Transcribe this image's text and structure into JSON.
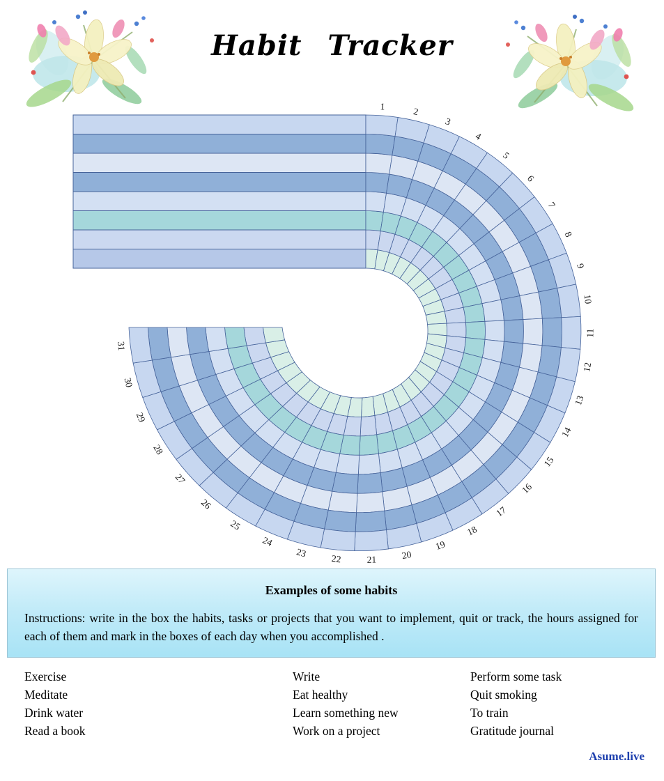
{
  "page": {
    "title": "Habit Tracker",
    "brand": "Asume.live"
  },
  "tracker": {
    "days": 31,
    "rings": 8,
    "day_labels": [
      "1",
      "2",
      "3",
      "4",
      "5",
      "6",
      "7",
      "8",
      "9",
      "10",
      "11",
      "12",
      "13",
      "14",
      "15",
      "16",
      "17",
      "18",
      "19",
      "20",
      "21",
      "22",
      "23",
      "24",
      "25",
      "26",
      "27",
      "28",
      "29",
      "30",
      "31"
    ],
    "row_colors_top_to_bottom": [
      "#c7d7f0",
      "#90b0d8",
      "#dde6f4",
      "#90b0d8",
      "#d3e0f3",
      "#a5d7db",
      "#cbd8f0",
      "#b6c8e8"
    ],
    "ring_colors_outer_to_inner": [
      "#c7d7f0",
      "#90b0d8",
      "#dde6f4",
      "#90b0d8",
      "#d3e0f3",
      "#a5d7db",
      "#cbd8f0",
      "#d9efe7"
    ],
    "grid_color": "#46639a"
  },
  "info_box": {
    "heading": "Examples of some habits",
    "instructions": "Instructions: write in the box the habits, tasks or projects that you want to implement, quit or track, the hours assigned for each of them and mark in the boxes of each day  when you accomplished ."
  },
  "examples": {
    "columns": [
      {
        "items": [
          "Exercise",
          "Meditate",
          "Drink water",
          "Read a book"
        ]
      },
      {
        "items": [
          "Write",
          "Eat healthy",
          "Learn something new",
          "Work on a project"
        ]
      },
      {
        "items": [
          "Perform some task",
          "Quit smoking",
          "To train",
          "Gratitude journal"
        ]
      }
    ]
  }
}
